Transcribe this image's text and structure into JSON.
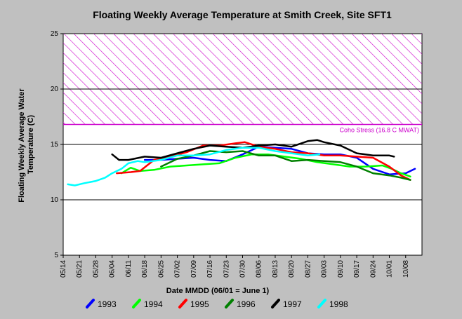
{
  "colors": {
    "background": "#c0c0c0",
    "plot_area": "#ffffff",
    "stress_band": "#cc00cc",
    "gridline": "#000000"
  },
  "chart_data": {
    "type": "line",
    "title": "Floating Weekly Average Temperature at Smith Creek, Site SFT1",
    "xlabel": "Date MMDD (06/01 = June 1)",
    "ylabel": "Floating Weekly Average Water Temperature (C)",
    "ylabel_lines": [
      "Floating Weekly Average Water",
      "Temperature (C)"
    ],
    "x_is_date": true,
    "xlim": [
      "05/14",
      "10/15"
    ],
    "ylim": [
      5,
      25
    ],
    "x_ticks": [
      "05/14",
      "05/21",
      "05/28",
      "06/04",
      "06/11",
      "06/18",
      "06/25",
      "07/02",
      "07/09",
      "07/16",
      "07/23",
      "07/30",
      "08/06",
      "08/13",
      "08/20",
      "08/27",
      "09/03",
      "09/10",
      "09/17",
      "09/24",
      "10/01",
      "10/08"
    ],
    "y_ticks": [
      5,
      10,
      15,
      20,
      25
    ],
    "grid": "horizontal at 10, 15, 20",
    "annotation": {
      "label": "Coho Stress (16.8 C MWAT)",
      "stress_threshold": 16.8,
      "band_range": [
        16.8,
        25
      ]
    },
    "legend_position": "bottom",
    "series": [
      {
        "name": "1993",
        "color": "#0000ff",
        "x": [
          "06/18",
          "06/25",
          "07/02",
          "07/09",
          "07/16",
          "07/23",
          "07/30",
          "08/06",
          "08/13",
          "08/20",
          "08/27",
          "09/03",
          "09/10",
          "09/17",
          "09/24",
          "10/01",
          "10/08",
          "10/12"
        ],
        "y": [
          13.6,
          13.6,
          13.7,
          13.8,
          13.6,
          13.5,
          14.1,
          14.8,
          14.7,
          14.6,
          14.2,
          14.1,
          14.1,
          13.8,
          12.8,
          12.3,
          12.4,
          12.8
        ]
      },
      {
        "name": "1994",
        "color": "#00ff00",
        "x": [
          "06/08",
          "06/12",
          "06/16",
          "06/22",
          "06/29",
          "07/06",
          "07/13",
          "07/20",
          "07/27",
          "08/03",
          "08/10",
          "08/17",
          "08/24",
          "08/31",
          "09/07",
          "09/14",
          "09/21",
          "09/28",
          "10/02",
          "10/06",
          "10/10"
        ],
        "y": [
          12.4,
          12.9,
          12.6,
          12.7,
          13.0,
          13.1,
          13.2,
          13.3,
          13.8,
          14.1,
          14.1,
          13.9,
          13.7,
          13.4,
          13.2,
          13.0,
          13.0,
          13.1,
          12.8,
          12.4,
          12.1
        ]
      },
      {
        "name": "1995",
        "color": "#ff0000",
        "x": [
          "06/06",
          "06/12",
          "06/16",
          "06/22",
          "06/29",
          "07/06",
          "07/13",
          "07/20",
          "07/27",
          "07/31",
          "08/06",
          "08/13",
          "08/20",
          "08/27",
          "09/03",
          "09/10",
          "09/17",
          "09/24",
          "10/01",
          "10/06",
          "10/10"
        ],
        "y": [
          12.4,
          12.5,
          12.6,
          13.6,
          13.9,
          14.3,
          14.9,
          14.9,
          15.1,
          15.2,
          14.8,
          14.6,
          14.3,
          14.2,
          14.0,
          14.0,
          13.9,
          13.8,
          13.0,
          12.2,
          11.8
        ]
      },
      {
        "name": "1996",
        "color": "#008000",
        "x": [
          "06/25",
          "07/02",
          "07/09",
          "07/16",
          "07/23",
          "07/30",
          "08/06",
          "08/13",
          "08/20",
          "08/27",
          "09/03",
          "09/10",
          "09/17",
          "09/24",
          "10/01",
          "10/06",
          "10/10"
        ],
        "y": [
          13.0,
          13.7,
          14.0,
          14.4,
          14.3,
          14.4,
          14.0,
          14.0,
          13.5,
          13.6,
          13.5,
          13.4,
          13.0,
          12.4,
          12.2,
          12.0,
          11.8
        ]
      },
      {
        "name": "1997",
        "color": "#000000",
        "x": [
          "06/04",
          "06/07",
          "06/11",
          "06/18",
          "06/25",
          "07/02",
          "07/09",
          "07/16",
          "07/23",
          "07/30",
          "08/06",
          "08/13",
          "08/20",
          "08/27",
          "08/31",
          "09/03",
          "09/10",
          "09/17",
          "09/24",
          "10/01",
          "10/03"
        ],
        "y": [
          14.1,
          13.6,
          13.6,
          13.9,
          13.8,
          14.2,
          14.6,
          14.9,
          14.8,
          14.7,
          14.9,
          15.0,
          14.8,
          15.3,
          15.4,
          15.2,
          14.9,
          14.2,
          14.0,
          14.0,
          13.9
        ]
      },
      {
        "name": "1998",
        "color": "#00ffff",
        "x": [
          "05/16",
          "05/19",
          "05/23",
          "05/28",
          "06/01",
          "06/04",
          "06/08",
          "06/11",
          "06/15",
          "06/18",
          "06/25",
          "07/02",
          "07/09",
          "07/16",
          "07/23",
          "07/30",
          "08/06",
          "08/13",
          "08/20",
          "08/27",
          "09/01"
        ],
        "y": [
          11.4,
          11.3,
          11.5,
          11.7,
          12.0,
          12.4,
          12.8,
          13.3,
          13.5,
          13.4,
          13.6,
          14.0,
          14.0,
          14.1,
          14.5,
          14.7,
          14.7,
          14.4,
          14.2,
          14.0,
          14.1
        ]
      }
    ]
  }
}
